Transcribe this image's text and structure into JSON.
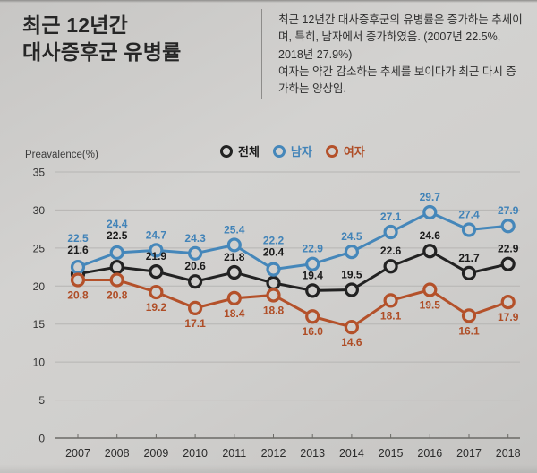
{
  "header": {
    "title_line1": "최근 12년간",
    "title_line2": "대사증후군 유병률",
    "description_p1": "최근 12년간 대사증후군의 유병률은 증가하는 추세이며, 특히, 남자에서 증가하였음. (2007년 22.5%, 2018년 27.9%)",
    "description_p2": "여자는 약간 감소하는 추세를 보이다가 최근 다시 증가하는 양상임."
  },
  "chart_data": {
    "type": "line",
    "title": "최근 12년간 대사증후군 유병률",
    "ylabel": "Preavalence(%)",
    "xlabel": "",
    "categories": [
      "2007",
      "2008",
      "2009",
      "2010",
      "2011",
      "2012",
      "2013",
      "2014",
      "2015",
      "2016",
      "2017",
      "2018"
    ],
    "yticks": [
      0,
      5,
      10,
      15,
      20,
      25,
      30,
      35
    ],
    "ylim": [
      0,
      35
    ],
    "grid": true,
    "legend_position": "top",
    "colors": {
      "background": "#d1d0ce",
      "gridline": "#b6b5b3",
      "axis": "#6b6a66"
    },
    "series": [
      {
        "key": "total",
        "name": "전체",
        "color": "#222222",
        "label_color": "#1a1a1a",
        "label_side": "above",
        "values": [
          21.6,
          22.5,
          21.9,
          20.6,
          21.8,
          20.4,
          19.4,
          19.5,
          22.6,
          24.6,
          21.7,
          22.9
        ]
      },
      {
        "key": "male",
        "name": "남자",
        "color": "#4587ba",
        "label_color": "#4183b8",
        "label_side": "above",
        "values": [
          22.5,
          24.4,
          24.7,
          24.3,
          25.4,
          22.2,
          22.9,
          24.5,
          27.1,
          29.7,
          27.4,
          27.9
        ]
      },
      {
        "key": "female",
        "name": "여자",
        "color": "#b4512a",
        "label_color": "#af4d26",
        "label_side": "below",
        "values": [
          20.8,
          20.8,
          19.2,
          17.1,
          18.4,
          18.8,
          16.0,
          14.6,
          18.1,
          19.5,
          16.1,
          17.9
        ]
      }
    ]
  }
}
